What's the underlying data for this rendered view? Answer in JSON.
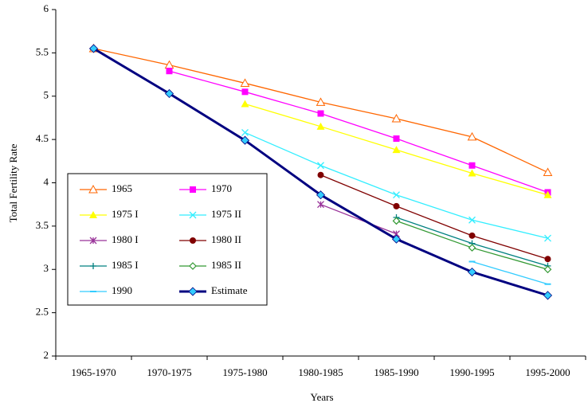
{
  "chart_data": {
    "type": "line",
    "x_label": "Years",
    "y_label": "Total Fertility Rate",
    "categories": [
      "1965-1970",
      "1970-1975",
      "1975-1980",
      "1980-1985",
      "1985-1990",
      "1990-1995",
      "1995-2000"
    ],
    "ylim": [
      2,
      6
    ],
    "yticks": [
      2,
      2.5,
      3,
      3.5,
      4,
      4.5,
      5,
      5.5,
      6
    ],
    "grid": false,
    "legend": "left",
    "series": [
      {
        "name": "1965",
        "color": "#ff6600",
        "marker": "triangle-open",
        "values": [
          5.55,
          5.36,
          5.15,
          4.93,
          4.74,
          4.53,
          4.12
        ]
      },
      {
        "name": "1970",
        "color": "#ff00ff",
        "marker": "square",
        "values": [
          null,
          5.29,
          5.05,
          4.8,
          4.51,
          4.2,
          3.89
        ]
      },
      {
        "name": "1975 I",
        "color": "#ffff00",
        "marker": "triangle",
        "values": [
          null,
          null,
          4.91,
          4.65,
          4.38,
          4.11,
          3.86
        ]
      },
      {
        "name": "1975 II",
        "color": "#33eeff",
        "marker": "x",
        "values": [
          null,
          null,
          4.58,
          4.2,
          3.86,
          3.57,
          3.36
        ]
      },
      {
        "name": "1980 I",
        "color": "#993399",
        "marker": "star",
        "values": [
          null,
          null,
          null,
          3.75,
          3.41,
          null,
          null
        ]
      },
      {
        "name": "1980 II",
        "color": "#800000",
        "marker": "circle",
        "values": [
          null,
          null,
          null,
          4.09,
          3.73,
          3.39,
          3.12
        ]
      },
      {
        "name": "1985 I",
        "color": "#008080",
        "marker": "plus",
        "values": [
          null,
          null,
          null,
          null,
          3.6,
          3.3,
          3.04
        ]
      },
      {
        "name": "1985 II",
        "color": "#339933",
        "marker": "diamond-open",
        "values": [
          null,
          null,
          null,
          null,
          3.56,
          3.25,
          3.0
        ]
      },
      {
        "name": "1990",
        "color": "#33ccff",
        "marker": "dash",
        "values": [
          null,
          null,
          null,
          null,
          null,
          3.09,
          2.83
        ]
      },
      {
        "name": "Estimate",
        "color": "#000080",
        "marker": "diamond",
        "marker_color": "#33ccff",
        "values": [
          5.55,
          5.03,
          4.49,
          3.86,
          3.35,
          2.97,
          2.7
        ]
      }
    ]
  }
}
